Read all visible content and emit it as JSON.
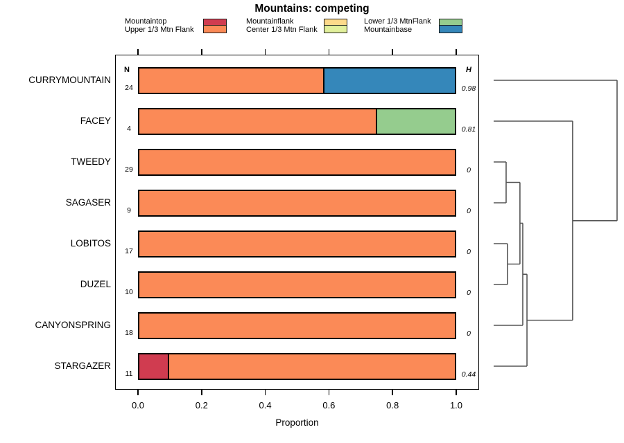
{
  "title": "Mountains: competing",
  "columns": {
    "n_header": "N",
    "h_header": "H"
  },
  "legend": {
    "items": [
      {
        "label": "Mountaintop",
        "color": "#d03c50"
      },
      {
        "label": "Upper 1/3 Mtn Flank",
        "color": "#fb8a57"
      },
      {
        "label": "Mountainflank",
        "color": "#fdda8b"
      },
      {
        "label": "Center 1/3 Mtn Flank",
        "color": "#e2f09c"
      },
      {
        "label": "Lower 1/3 MtnFlank",
        "color": "#95cc8e"
      },
      {
        "label": "Mountainbase",
        "color": "#3587ba"
      }
    ]
  },
  "chart_data": {
    "type": "bar",
    "orientation": "horizontal",
    "stacked": true,
    "title": "Mountains: competing",
    "xlabel": "Proportion",
    "xlim": [
      0,
      1
    ],
    "x_ticks": [
      {
        "label": "0.0",
        "value": 0.0
      },
      {
        "label": "0.2",
        "value": 0.2
      },
      {
        "label": "0.4",
        "value": 0.4
      },
      {
        "label": "0.6",
        "value": 0.6
      },
      {
        "label": "0.8",
        "value": 0.8
      },
      {
        "label": "1.0",
        "value": 1.0
      }
    ],
    "rows": [
      {
        "label": "CURRYMOUNTAIN",
        "n": 24,
        "h": "0.98",
        "segments": [
          {
            "category": "Upper 1/3 Mtn Flank",
            "value": 0.583
          },
          {
            "category": "Mountainbase",
            "value": 0.417
          }
        ]
      },
      {
        "label": "FACEY",
        "n": 4,
        "h": "0.81",
        "segments": [
          {
            "category": "Upper 1/3 Mtn Flank",
            "value": 0.75
          },
          {
            "category": "Lower 1/3 MtnFlank",
            "value": 0.25
          }
        ]
      },
      {
        "label": "TWEEDY",
        "n": 29,
        "h": "0",
        "segments": [
          {
            "category": "Upper 1/3 Mtn Flank",
            "value": 1.0
          }
        ]
      },
      {
        "label": "SAGASER",
        "n": 9,
        "h": "0",
        "segments": [
          {
            "category": "Upper 1/3 Mtn Flank",
            "value": 1.0
          }
        ]
      },
      {
        "label": "LOBITOS",
        "n": 17,
        "h": "0",
        "segments": [
          {
            "category": "Upper 1/3 Mtn Flank",
            "value": 1.0
          }
        ]
      },
      {
        "label": "DUZEL",
        "n": 10,
        "h": "0",
        "segments": [
          {
            "category": "Upper 1/3 Mtn Flank",
            "value": 1.0
          }
        ]
      },
      {
        "label": "CANYONSPRING",
        "n": 18,
        "h": "0",
        "segments": [
          {
            "category": "Upper 1/3 Mtn Flank",
            "value": 1.0
          }
        ]
      },
      {
        "label": "STARGAZER",
        "n": 11,
        "h": "0.44",
        "segments": [
          {
            "category": "Mountaintop",
            "value": 0.091
          },
          {
            "category": "Upper 1/3 Mtn Flank",
            "value": 0.909
          }
        ]
      }
    ],
    "dendrogram": {
      "leaf_order": [
        "CURRYMOUNTAIN",
        "FACEY",
        "TWEEDY",
        "SAGASER",
        "LOBITOS",
        "DUZEL",
        "CANYONSPRING",
        "STARGAZER"
      ],
      "merges": [
        {
          "a": "TWEEDY",
          "b": "SAGASER",
          "h": 0.101
        },
        {
          "a": "LOBITOS",
          "b": "DUZEL",
          "h": 0.112
        },
        {
          "a": "m0",
          "b": "m1",
          "h": 0.213
        },
        {
          "a": "m2",
          "b": "CANYONSPRING",
          "h": 0.236
        },
        {
          "a": "m3",
          "b": "STARGAZER",
          "h": 0.27
        },
        {
          "a": "FACEY",
          "b": "m4",
          "h": 0.64
        },
        {
          "a": "CURRYMOUNTAIN",
          "b": "m5",
          "h": 1.0
        }
      ]
    }
  }
}
